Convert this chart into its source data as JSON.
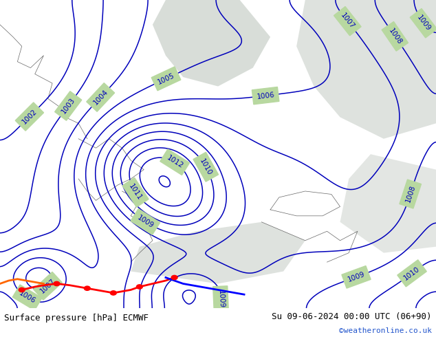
{
  "title_left": "Surface pressure [hPa] ECMWF",
  "title_right": "Su 09-06-2024 00:00 UTC (06+90)",
  "credit": "©weatheronline.co.uk",
  "bg_color": "#b8d8a0",
  "sea_color": "#d8e8d0",
  "gray_color": "#c8c8c8",
  "contour_color": "#0000bb",
  "contour_linewidth": 1.1,
  "label_fontsize": 7.5,
  "figsize": [
    6.34,
    4.9
  ],
  "dpi": 100
}
